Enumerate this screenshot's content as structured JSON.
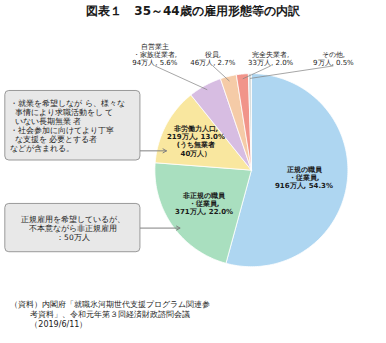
{
  "chart_data": {
    "type": "pie",
    "title": "図表１　35～44歳の雇用形態等の内訳",
    "categories": [
      "正規の職員\n・従業員,\n916万人, 54.3%",
      "非正規の職員\n・従業員,\n371万人, 22.0%",
      "非労働力人口,\n219万人, 13.0%\n(うち無業者\n40万人）",
      "自営業主\n・家族従業者,\n94万人, 5.6%",
      "役員,\n46万人, 2.7%",
      "完全失業者,\n33万人, 2.0%",
      "その他,\n9万人, 0.5%"
    ],
    "values": [
      54.3,
      22.0,
      13.0,
      5.6,
      2.7,
      2.0,
      0.5
    ],
    "colors": [
      "#aed6f1",
      "#a9dfbf",
      "#f9e79f",
      "#d7bde2",
      "#f5cba7",
      "#f1948a",
      "#d5dbdb"
    ],
    "data_labels": true,
    "annotations": [
      "・就業を希望しなが ら、様々な\n  事情により求職活動をし て\n  いない長期無業 者\n・社会参加に向けてより丁寧\n  な支援を 必要とする者\nなどが含まれる。",
      "正規雇用を希望しているが、\n不本意ながら非正規雇用\n：50万人",
      "（資料）内閣府「就職氷河期世代支援プログラム関連参\n        考資料」、令和元年第３回経済財政諮問会議\n        （2019/6/11）"
    ]
  }
}
